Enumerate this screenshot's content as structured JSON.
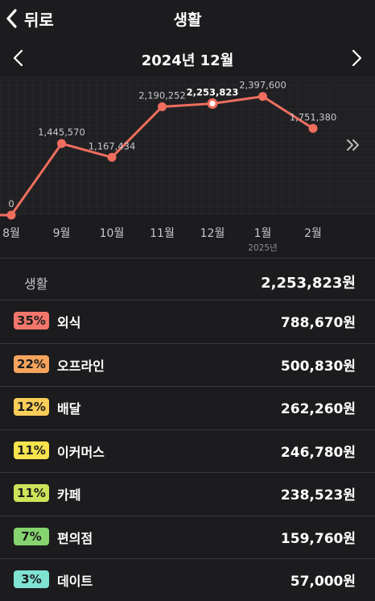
{
  "header": {
    "back_label": "뒤로",
    "title": "생활"
  },
  "month_nav": {
    "title": "2024년 12월"
  },
  "chart_data": {
    "type": "line",
    "categories": [
      "8월",
      "9월",
      "10월",
      "11월",
      "12월",
      "1월",
      "2월"
    ],
    "year_note": "2025년",
    "series": [
      {
        "values": [
          0,
          1445570,
          1167434,
          2190252,
          2253823,
          2397600,
          1751380
        ],
        "color": "#ef6e5e"
      }
    ],
    "labels": [
      "0",
      "1,445,570",
      "1,167,434",
      "2,190,252",
      "2,253,823",
      "2,397,600",
      "1,751,380"
    ],
    "selected_index": 4,
    "ylim": [
      0,
      2800000
    ]
  },
  "summary": {
    "label": "생활",
    "total": "2,253,823원"
  },
  "categories": [
    {
      "pct": "35%",
      "name": "외식",
      "amount": "788,670원",
      "color": "#f2766b"
    },
    {
      "pct": "22%",
      "name": "오프라인",
      "amount": "500,830원",
      "color": "#f6a45d"
    },
    {
      "pct": "12%",
      "name": "배달",
      "amount": "262,260원",
      "color": "#f8cd58"
    },
    {
      "pct": "11%",
      "name": "이커머스",
      "amount": "246,780원",
      "color": "#f7e34c"
    },
    {
      "pct": "11%",
      "name": "카페",
      "amount": "238,523원",
      "color": "#cde45a"
    },
    {
      "pct": "7%",
      "name": "편의점",
      "amount": "159,760원",
      "color": "#86d46f"
    },
    {
      "pct": "3%",
      "name": "데이트",
      "amount": "57,000원",
      "color": "#7fe3d2"
    }
  ]
}
